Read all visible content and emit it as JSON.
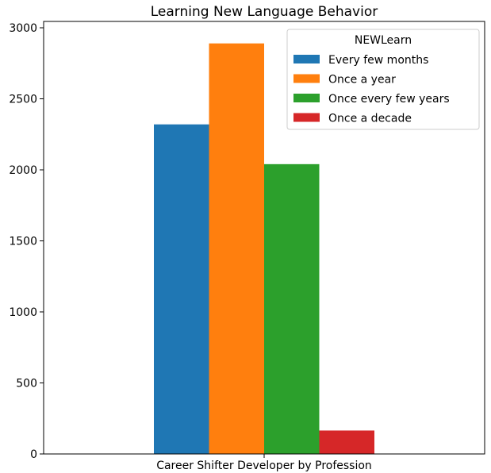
{
  "chart_data": {
    "type": "bar",
    "title": "Learning New Language Behavior",
    "xlabel": "",
    "ylabel": "",
    "categories": [
      "Career Shifter Developer by Profession"
    ],
    "ylim": [
      0,
      3000
    ],
    "yticks": [
      0,
      500,
      1000,
      1500,
      2000,
      2500,
      3000
    ],
    "grid": false,
    "legend": {
      "title": "NEWLearn",
      "placement": "top-right"
    },
    "series": [
      {
        "name": "Every few months",
        "values": [
          2320
        ],
        "color": "#1f77b4"
      },
      {
        "name": "Once a year",
        "values": [
          2890
        ],
        "color": "#ff7f0e"
      },
      {
        "name": "Once every few years",
        "values": [
          2040
        ],
        "color": "#2ca02c"
      },
      {
        "name": "Once a decade",
        "values": [
          165
        ],
        "color": "#d62728"
      }
    ]
  }
}
